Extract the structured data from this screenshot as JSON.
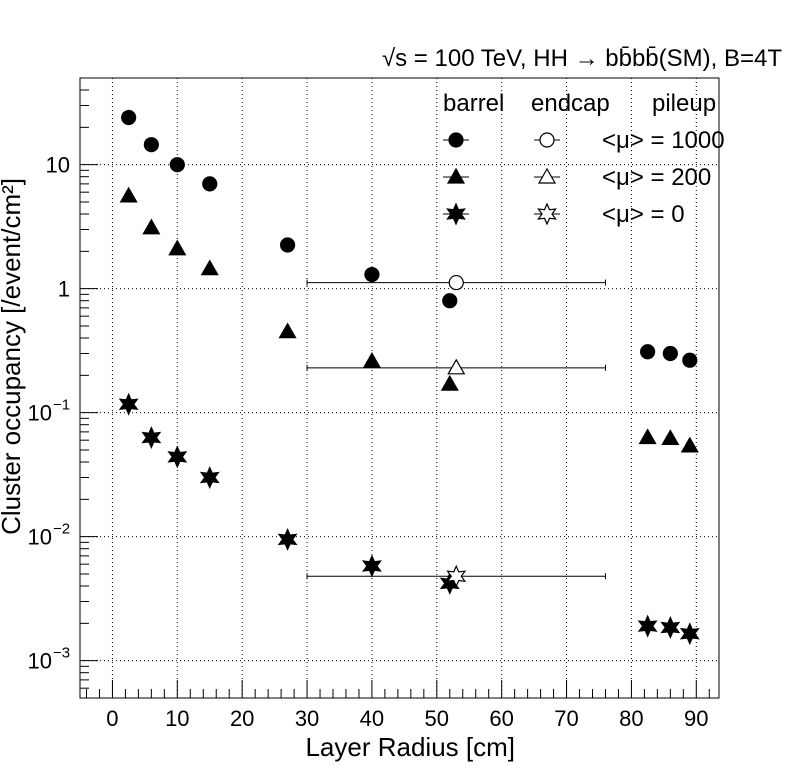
{
  "chart_data": {
    "type": "scatter",
    "title": "√s = 100 TeV, HH → bb̄bb̄(SM), B=4T",
    "xlabel": "Layer Radius [cm]",
    "ylabel": "Cluster occupancy [/event/cm²]",
    "xlim": [
      -5,
      93.5
    ],
    "ylim": [
      0.0005,
      50
    ],
    "yscale": "log",
    "grid": true,
    "x_ticks": [
      0,
      10,
      20,
      30,
      40,
      50,
      60,
      70,
      80,
      90
    ],
    "y_ticks": [
      {
        "value": 0.001,
        "base": "10",
        "exp": "−3"
      },
      {
        "value": 0.01,
        "base": "10",
        "exp": "−2"
      },
      {
        "value": 0.1,
        "base": "10",
        "exp": "−1"
      },
      {
        "value": 1,
        "base": "1",
        "exp": ""
      },
      {
        "value": 10,
        "base": "10",
        "exp": ""
      }
    ],
    "legend": {
      "placement": "top-right",
      "headers": [
        "barrel",
        "endcap",
        "pileup"
      ],
      "rows": [
        {
          "marker": "circle",
          "label": "<μ> = 1000"
        },
        {
          "marker": "triangle",
          "label": "<μ> = 200"
        },
        {
          "marker": "star",
          "label": "<μ> = 0"
        }
      ]
    },
    "series": [
      {
        "region": "barrel",
        "pileup": 1000,
        "marker": "circle",
        "filled": true,
        "x": [
          2.5,
          6,
          10,
          15,
          27,
          40,
          52,
          82.5,
          86,
          89
        ],
        "y": [
          24,
          14.5,
          10,
          7,
          2.25,
          1.3,
          0.8,
          0.31,
          0.3,
          0.265
        ]
      },
      {
        "region": "barrel",
        "pileup": 200,
        "marker": "triangle",
        "filled": true,
        "x": [
          2.5,
          6,
          10,
          15,
          27,
          40,
          52,
          82.5,
          86,
          89
        ],
        "y": [
          5.6,
          3.1,
          2.1,
          1.45,
          0.45,
          0.26,
          0.17,
          0.063,
          0.062,
          0.054
        ]
      },
      {
        "region": "barrel",
        "pileup": 0,
        "marker": "star",
        "filled": true,
        "x": [
          2.5,
          6,
          10,
          15,
          27,
          40,
          52,
          82.5,
          86,
          89
        ],
        "y": [
          0.117,
          0.063,
          0.044,
          0.03,
          0.0095,
          0.0058,
          0.0042,
          0.0019,
          0.00185,
          0.00165
        ]
      },
      {
        "region": "endcap",
        "pileup": 1000,
        "marker": "circle",
        "filled": false,
        "x": [
          53
        ],
        "y": [
          1.12
        ],
        "xerr_low": [
          23
        ],
        "xerr_high": [
          23
        ]
      },
      {
        "region": "endcap",
        "pileup": 200,
        "marker": "triangle",
        "filled": false,
        "x": [
          53
        ],
        "y": [
          0.23
        ],
        "xerr_low": [
          23
        ],
        "xerr_high": [
          23
        ]
      },
      {
        "region": "endcap",
        "pileup": 0,
        "marker": "star",
        "filled": false,
        "x": [
          53
        ],
        "y": [
          0.0048
        ],
        "xerr_low": [
          23
        ],
        "xerr_high": [
          23
        ]
      }
    ]
  }
}
